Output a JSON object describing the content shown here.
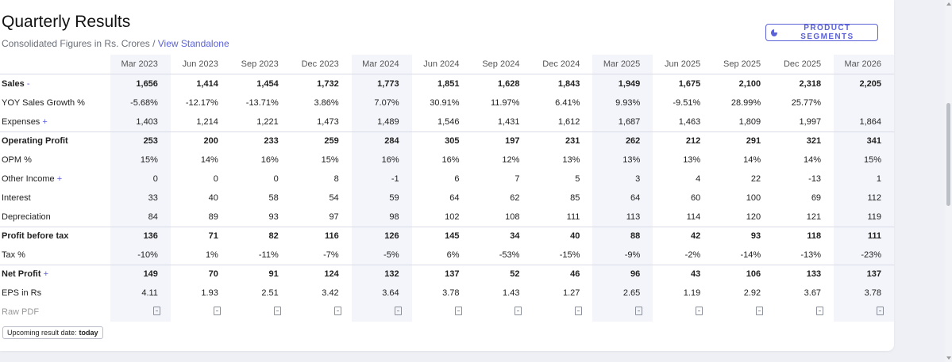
{
  "header": {
    "title": "Quarterly Results",
    "subtitle_prefix": "Consolidated Figures in Rs. Crores /",
    "standalone_link": "View Standalone",
    "segments_button": "PRODUCT SEGMENTS"
  },
  "table": {
    "quarters": [
      "Mar 2023",
      "Jun 2023",
      "Sep 2023",
      "Dec 2023",
      "Mar 2024",
      "Jun 2024",
      "Sep 2024",
      "Dec 2024",
      "Mar 2025",
      "Jun 2025",
      "Sep 2025",
      "Dec 2025",
      "Mar 2026"
    ],
    "rows": [
      {
        "label": "Sales",
        "marker": "-",
        "bold": true,
        "line": false,
        "values": [
          "1,656",
          "1,414",
          "1,454",
          "1,732",
          "1,773",
          "1,851",
          "1,628",
          "1,843",
          "1,949",
          "1,675",
          "2,100",
          "2,318",
          "2,205"
        ]
      },
      {
        "label": "YOY Sales Growth %",
        "marker": "",
        "bold": false,
        "line": false,
        "values": [
          "-5.68%",
          "-12.17%",
          "-13.71%",
          "3.86%",
          "7.07%",
          "30.91%",
          "11.97%",
          "6.41%",
          "9.93%",
          "-9.51%",
          "28.99%",
          "25.77%",
          ""
        ]
      },
      {
        "label": "Expenses",
        "marker": "+",
        "bold": false,
        "line": false,
        "values": [
          "1,403",
          "1,214",
          "1,221",
          "1,473",
          "1,489",
          "1,546",
          "1,431",
          "1,612",
          "1,687",
          "1,463",
          "1,809",
          "1,997",
          "1,864"
        ]
      },
      {
        "label": "Operating Profit",
        "marker": "",
        "bold": true,
        "line": true,
        "values": [
          "253",
          "200",
          "233",
          "259",
          "284",
          "305",
          "197",
          "231",
          "262",
          "212",
          "291",
          "321",
          "341"
        ]
      },
      {
        "label": "OPM %",
        "marker": "",
        "bold": false,
        "line": false,
        "values": [
          "15%",
          "14%",
          "16%",
          "15%",
          "16%",
          "16%",
          "12%",
          "13%",
          "13%",
          "13%",
          "14%",
          "14%",
          "15%"
        ]
      },
      {
        "label": "Other Income",
        "marker": "+",
        "bold": false,
        "line": false,
        "values": [
          "0",
          "0",
          "0",
          "8",
          "-1",
          "6",
          "7",
          "5",
          "3",
          "4",
          "22",
          "-13",
          "1"
        ]
      },
      {
        "label": "Interest",
        "marker": "",
        "bold": false,
        "line": false,
        "values": [
          "33",
          "40",
          "58",
          "54",
          "59",
          "64",
          "62",
          "85",
          "64",
          "60",
          "100",
          "69",
          "112"
        ]
      },
      {
        "label": "Depreciation",
        "marker": "",
        "bold": false,
        "line": false,
        "values": [
          "84",
          "89",
          "93",
          "97",
          "98",
          "102",
          "108",
          "111",
          "113",
          "114",
          "120",
          "121",
          "119"
        ]
      },
      {
        "label": "Profit before tax",
        "marker": "",
        "bold": true,
        "line": true,
        "values": [
          "136",
          "71",
          "82",
          "116",
          "126",
          "145",
          "34",
          "40",
          "88",
          "42",
          "93",
          "118",
          "111"
        ]
      },
      {
        "label": "Tax %",
        "marker": "",
        "bold": false,
        "line": false,
        "values": [
          "-10%",
          "1%",
          "-11%",
          "-7%",
          "-5%",
          "6%",
          "-53%",
          "-15%",
          "-9%",
          "-2%",
          "-14%",
          "-13%",
          "-23%"
        ]
      },
      {
        "label": "Net Profit",
        "marker": "+",
        "bold": true,
        "line": true,
        "values": [
          "149",
          "70",
          "91",
          "124",
          "132",
          "137",
          "52",
          "46",
          "96",
          "43",
          "106",
          "133",
          "137"
        ]
      },
      {
        "label": "EPS in Rs",
        "marker": "",
        "bold": false,
        "line": false,
        "values": [
          "4.11",
          "1.93",
          "2.51",
          "3.42",
          "3.64",
          "3.78",
          "1.43",
          "1.27",
          "2.65",
          "1.19",
          "2.92",
          "3.67",
          "3.78"
        ]
      }
    ],
    "raw_pdf_label": "Raw PDF",
    "pdf_icon": "pdf-file-icon"
  },
  "upcoming": {
    "label": "Upcoming result date:",
    "value": "today"
  },
  "colors": {
    "accent": "#5b62d8",
    "shade": "#f4f5fa",
    "background": "#eef0f5"
  }
}
